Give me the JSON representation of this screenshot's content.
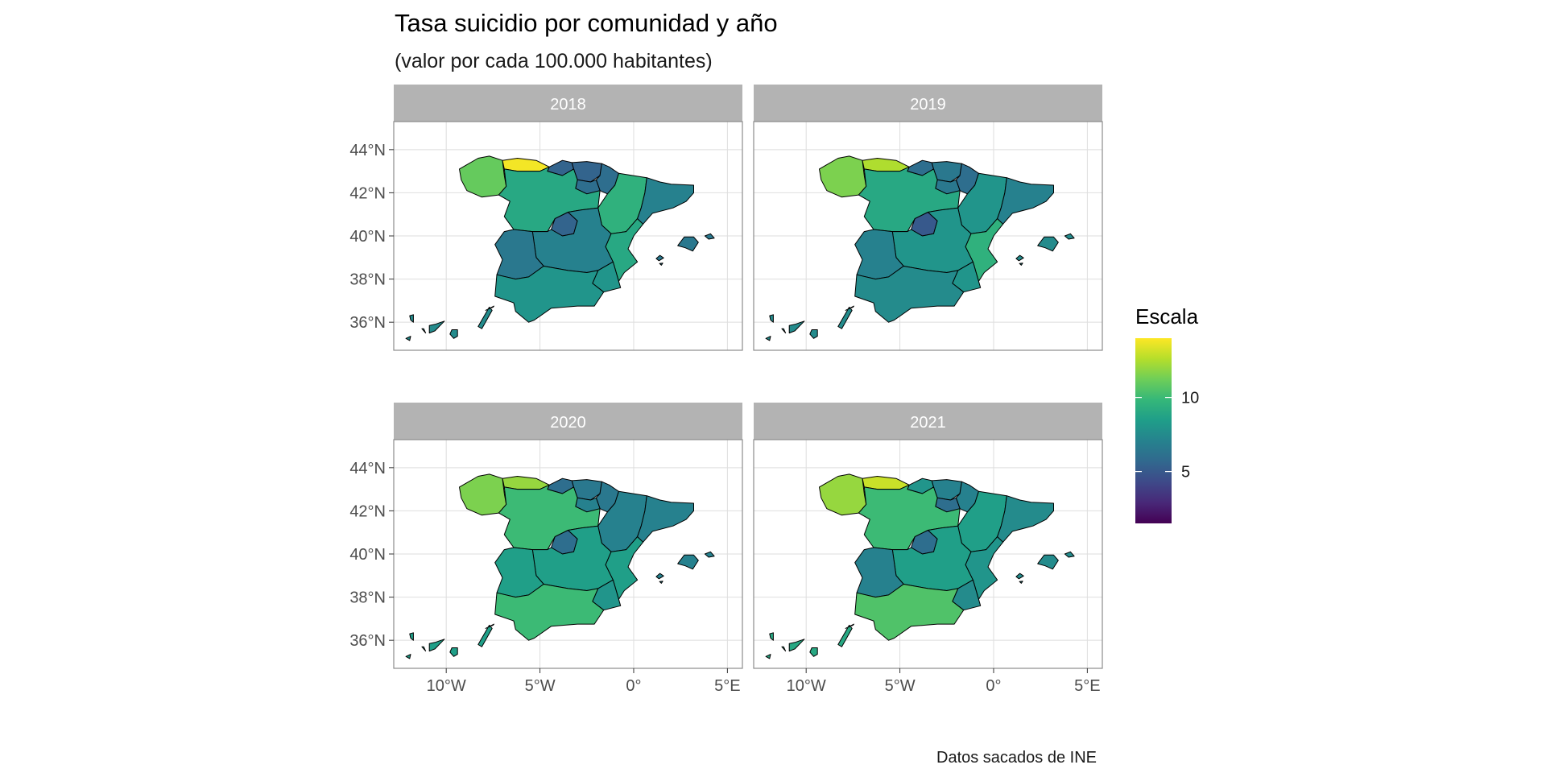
{
  "chart_data": {
    "type": "choropleth map (faceted)",
    "title": "Tasa suicidio por comunidad y año",
    "subtitle": "(valor por cada 100.000 habitantes)",
    "caption": "Datos sacados de INE",
    "facets": [
      "2018",
      "2019",
      "2020",
      "2021"
    ],
    "x_axis": {
      "ticks": [
        -10,
        -5,
        0,
        5
      ],
      "tick_labels": [
        "10°W",
        "5°W",
        "0°",
        "5°E"
      ],
      "range": [
        -12.8,
        5.8
      ]
    },
    "y_axis": {
      "ticks": [
        36,
        38,
        40,
        42,
        44
      ],
      "tick_labels": [
        "36°N",
        "38°N",
        "40°N",
        "42°N",
        "44°N"
      ],
      "range": [
        34.7,
        45.3
      ]
    },
    "grid": true,
    "legend": {
      "title": "Escala",
      "position": "right",
      "breaks": [
        5,
        10
      ],
      "break_labels": [
        "5",
        "10"
      ],
      "limits": [
        1.5,
        14
      ],
      "palette": "viridis"
    },
    "regions": [
      "Galicia",
      "Asturias",
      "Cantabria",
      "País Vasco",
      "Navarra",
      "La Rioja",
      "Aragón",
      "Cataluña",
      "Castilla y León",
      "Madrid",
      "Castilla-La Mancha",
      "Extremadura",
      "Comunitat Valenciana",
      "Región de Murcia",
      "Andalucía",
      "Illes Balears",
      "Canarias"
    ],
    "values": {
      "2018": [
        11.0,
        13.8,
        5.5,
        5.5,
        6.0,
        6.0,
        9.5,
        7.0,
        9.0,
        5.5,
        7.0,
        6.5,
        9.0,
        8.0,
        8.0,
        6.5,
        7.5
      ],
      "2019": [
        11.5,
        12.5,
        6.0,
        6.5,
        6.0,
        6.5,
        8.0,
        7.0,
        9.0,
        5.0,
        8.0,
        7.0,
        9.5,
        8.0,
        7.5,
        7.5,
        7.5
      ],
      "2020": [
        11.5,
        12.0,
        6.0,
        6.5,
        6.5,
        7.0,
        7.0,
        7.0,
        10.0,
        6.0,
        8.5,
        8.5,
        8.5,
        8.0,
        10.0,
        7.0,
        8.5
      ],
      "2021": [
        12.0,
        13.0,
        8.0,
        7.0,
        7.0,
        6.0,
        8.5,
        7.5,
        10.0,
        6.0,
        8.5,
        7.0,
        8.0,
        7.5,
        10.5,
        7.5,
        9.0
      ]
    }
  }
}
